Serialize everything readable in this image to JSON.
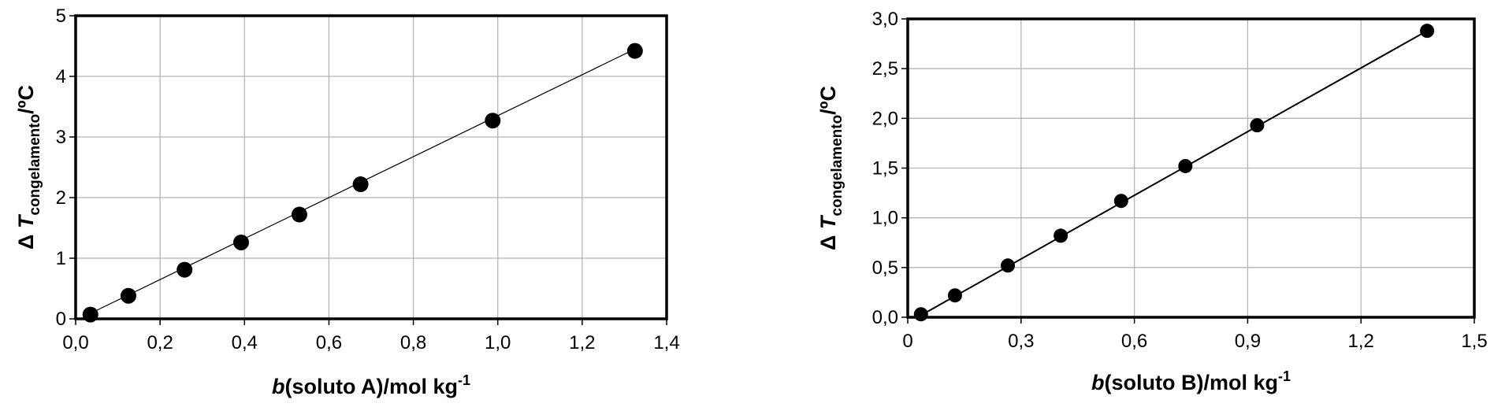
{
  "chart_data": [
    {
      "type": "scatter",
      "xlim": [
        0,
        1.4
      ],
      "ylim": [
        0,
        5
      ],
      "xticks": [
        "0,0",
        "0,2",
        "0,4",
        "0,6",
        "0,8",
        "1,0",
        "1,2",
        "1,4"
      ],
      "yticks": [
        "0",
        "1",
        "2",
        "3",
        "4",
        "5"
      ],
      "grid": true,
      "fit_line": true,
      "xlabel": {
        "italic": "b",
        "rest": "(soluto A)/mol kg",
        "sup": "-1"
      },
      "ylabel": {
        "prefix": "Δ",
        "italic": "T",
        "sub": "congelamento",
        "suffix": "/ºC"
      },
      "series": [
        {
          "x": [
            0.035,
            0.125,
            0.258,
            0.392,
            0.53,
            0.675,
            0.988,
            1.325
          ],
          "y": [
            0.07,
            0.38,
            0.81,
            1.26,
            1.72,
            2.22,
            3.27,
            4.42
          ]
        }
      ],
      "fit": {
        "x": [
          0.035,
          1.325
        ],
        "y": [
          0.09,
          4.45
        ]
      }
    },
    {
      "type": "scatter",
      "xlim": [
        0,
        1.5
      ],
      "ylim": [
        0,
        3.0
      ],
      "xticks": [
        "0",
        "0,3",
        "0,6",
        "0,9",
        "1,2",
        "1,5"
      ],
      "yticks": [
        "0,0",
        "0,5",
        "1,0",
        "1,5",
        "2,0",
        "2,5",
        "3,0"
      ],
      "grid": true,
      "fit_line": true,
      "xlabel": {
        "italic": "b",
        "rest": "(soluto B)/mol kg",
        "sup": "-1"
      },
      "ylabel": {
        "prefix": "Δ",
        "italic": "T",
        "sub": "congelamento",
        "suffix": "/ºC"
      },
      "series": [
        {
          "x": [
            0.035,
            0.125,
            0.265,
            0.405,
            0.565,
            0.735,
            0.925,
            1.375
          ],
          "y": [
            0.03,
            0.22,
            0.52,
            0.82,
            1.17,
            1.52,
            1.93,
            2.88
          ]
        }
      ],
      "fit": {
        "x": [
          0.035,
          1.375
        ],
        "y": [
          0.02,
          2.88
        ]
      }
    }
  ]
}
